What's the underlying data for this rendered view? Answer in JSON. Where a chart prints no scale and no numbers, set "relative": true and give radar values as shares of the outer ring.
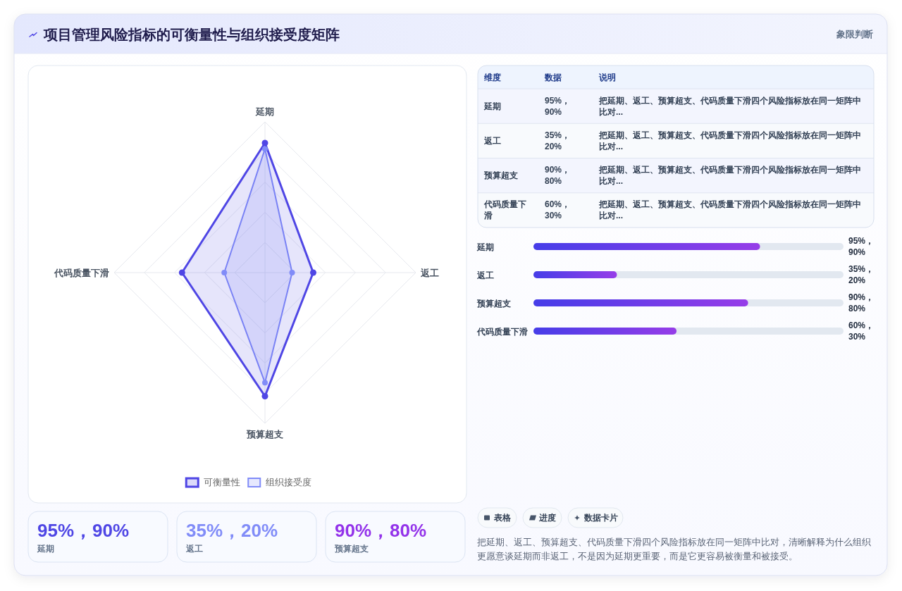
{
  "chart_data": [
    {
      "type": "other",
      "title": "项目管理风险指标的可衡量性与组织接受度矩阵",
      "subtitle": "象限判断"
    },
    {
      "type": "radar",
      "categories": [
        "延期",
        "返工",
        "预算超支",
        "代码质量下滑"
      ],
      "series": [
        {
          "name": "可衡量性",
          "color": "#4f46e5",
          "values": [
            0.86,
            0.32,
            0.82,
            0.55
          ]
        },
        {
          "name": "组织接受度",
          "color": "#818cf8",
          "values": [
            0.82,
            0.18,
            0.73,
            0.27
          ]
        }
      ],
      "relative": true,
      "grid": true,
      "marker": "circle",
      "legend": "bottom"
    },
    {
      "type": "other",
      "categories": [
        "维度",
        "数据",
        "说明"
      ],
      "y_categories": [
        "延期",
        "返工",
        "预算超支",
        "代码质量下滑"
      ],
      "cell_labels": [
        [
          "95%，90%",
          "把延期、返工、预算超支、代码质量下滑四个风险指标放在同一矩阵中比对..."
        ],
        [
          "35%，20%",
          "把延期、返工、预算超支、代码质量下滑四个风险指标放在同一矩阵中比对..."
        ],
        [
          "90%，80%",
          "把延期、返工、预算超支、代码质量下滑四个风险指标放在同一矩阵中比对..."
        ],
        [
          "60%，30%",
          "把延期、返工、预算超支、代码质量下滑四个风险指标放在同一矩阵中比对..."
        ]
      ]
    },
    {
      "type": "bar",
      "orientation": "horizontal",
      "categories": [
        "延期",
        "返工",
        "预算超支",
        "代码质量下滑"
      ],
      "values": [
        95,
        35,
        90,
        60
      ],
      "color": "#713de8",
      "xlim": [
        0,
        130
      ],
      "tick_labels": "y",
      "value_labels": [
        "95%，90%",
        "35%，20%",
        "90%，80%",
        "60%，30%"
      ]
    },
    {
      "type": "other",
      "value_labels": [
        "95%，90%",
        "35%，20%",
        "90%，80%"
      ],
      "colors": [
        "#4f46e5",
        "#818cf8",
        "#9333ea"
      ],
      "annotations": [
        "延期",
        "返工",
        "预算超支"
      ]
    },
    {
      "type": "other",
      "categories": [
        "表格",
        "进度",
        "数据卡片"
      ],
      "annotations": [
        "把延期、返工、预算超支、代码质量下滑四个风险指标放在同一矩阵中比对，清晰解释为什么组织更愿意谈延期而非返工，不是因为延期更重要，而是它更容易被衡量和被接受。"
      ]
    }
  ]
}
